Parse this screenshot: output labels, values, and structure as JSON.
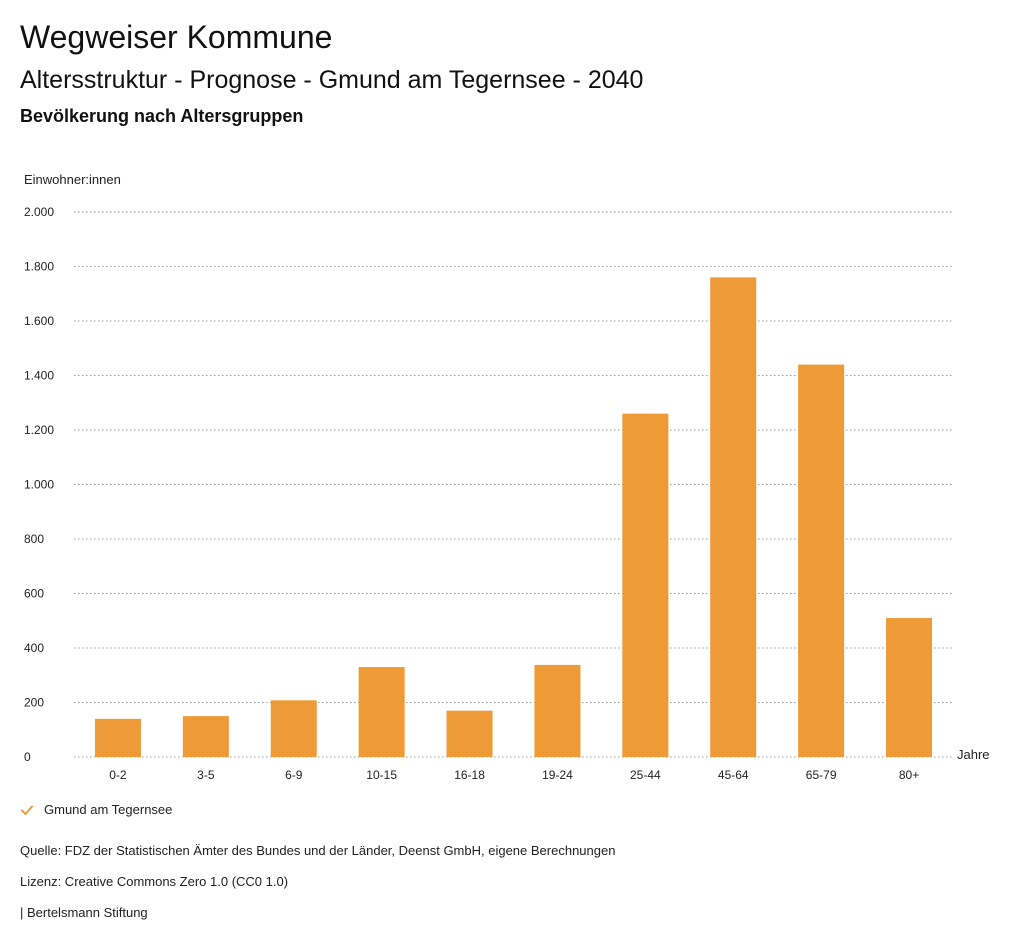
{
  "header": {
    "title": "Wegweiser Kommune",
    "subtitle": "Altersstruktur - Prognose - Gmund am Tegernsee - 2040",
    "section": "Bevölkerung nach Altersgruppen"
  },
  "chart_data": {
    "type": "bar",
    "ylabel": "Einwohner:innen",
    "xlabel": "Jahre",
    "ylim": [
      0,
      2000
    ],
    "yticks": [
      0,
      200,
      400,
      600,
      800,
      1000,
      1200,
      1400,
      1600,
      1800,
      2000
    ],
    "ytick_labels": [
      "0",
      "200",
      "400",
      "600",
      "800",
      "1.000",
      "1.200",
      "1.400",
      "1.600",
      "1.800",
      "2.000"
    ],
    "categories": [
      "0-2",
      "3-5",
      "6-9",
      "10-15",
      "16-18",
      "19-24",
      "25-44",
      "45-64",
      "65-79",
      "80+"
    ],
    "series": [
      {
        "name": "Gmund am Tegernsee",
        "values": [
          140,
          150,
          208,
          330,
          170,
          338,
          1260,
          1760,
          1440,
          510
        ],
        "color": "#ED9A37"
      }
    ],
    "grid": true,
    "legend_position": "bottom-left"
  },
  "legend": {
    "label": "Gmund am Tegernsee",
    "icon": "check-icon"
  },
  "footer": {
    "source": "Quelle: FDZ der Statistischen Ämter des Bundes und der Länder, Deenst GmbH, eigene Berechnungen",
    "license": "Lizenz: Creative Commons Zero 1.0 (CC0 1.0)",
    "publisher": "| Bertelsmann Stiftung"
  }
}
